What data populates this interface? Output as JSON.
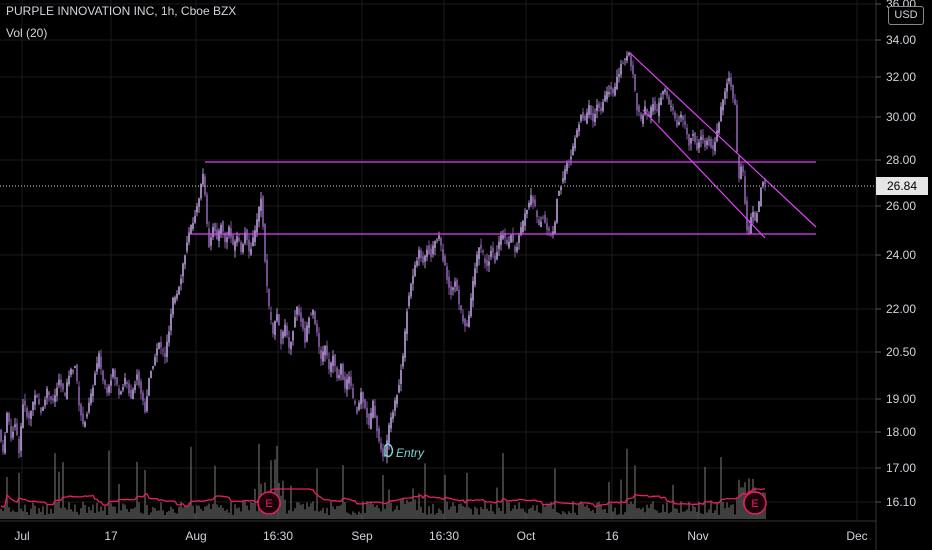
{
  "header": {
    "title": "PURPLE INNOVATION INC, 1h, Cboe BZX",
    "volume_label": "Vol (20)"
  },
  "currency_badge": "USD",
  "current_price_label": "26.84",
  "entry_label": "Entry",
  "earnings_label": "E",
  "colors": {
    "background": "#000000",
    "candle": "#c8a2f0",
    "candle_up": "#d9b8ff",
    "candle_down": "#a070c8",
    "drawing": "#e040fb",
    "volume_ma": "#e91e63",
    "volume_bar": "#5a5a5a",
    "entry_marker": "#7fd4d4",
    "grid": "#1a1a1a",
    "axis_text": "#d1d4dc"
  },
  "chart_data": {
    "type": "candlestick",
    "title": "PURPLE INNOVATION INC, 1h, Cboe BZX",
    "y_scale": "log",
    "ylim": [
      15.7,
      36.0
    ],
    "y_ticks": [
      "36.00",
      "34.00",
      "32.00",
      "30.00",
      "28.00",
      "26.00",
      "24.00",
      "22.00",
      "20.50",
      "19.00",
      "18.00",
      "17.00",
      "16.10"
    ],
    "x_ticks": [
      "Jul",
      "17",
      "Aug",
      "16:30",
      "Sep",
      "16:30",
      "Oct",
      "16",
      "Nov",
      "Dec"
    ],
    "current_price": 26.84,
    "volume_indicator": "Vol (20)",
    "price_path": [
      [
        0,
        18.1
      ],
      [
        4,
        17.4
      ],
      [
        8,
        18.6
      ],
      [
        12,
        17.9
      ],
      [
        16,
        18.3
      ],
      [
        20,
        17.5
      ],
      [
        24,
        18.9
      ],
      [
        30,
        18.4
      ],
      [
        36,
        19.2
      ],
      [
        42,
        18.6
      ],
      [
        48,
        19.3
      ],
      [
        54,
        18.9
      ],
      [
        60,
        19.6
      ],
      [
        66,
        19.1
      ],
      [
        70,
        19.8
      ],
      [
        76,
        20.1
      ],
      [
        80,
        18.9
      ],
      [
        84,
        18.2
      ],
      [
        88,
        18.6
      ],
      [
        92,
        19.1
      ],
      [
        96,
        19.8
      ],
      [
        100,
        20.4
      ],
      [
        104,
        19.6
      ],
      [
        108,
        19.3
      ],
      [
        114,
        19.9
      ],
      [
        120,
        19.2
      ],
      [
        126,
        19.6
      ],
      [
        132,
        19.1
      ],
      [
        138,
        19.8
      ],
      [
        142,
        19.2
      ],
      [
        146,
        18.7
      ],
      [
        150,
        19.6
      ],
      [
        155,
        20.3
      ],
      [
        160,
        20.8
      ],
      [
        166,
        20.4
      ],
      [
        170,
        21.2
      ],
      [
        174,
        22.3
      ],
      [
        178,
        22.6
      ],
      [
        182,
        23.2
      ],
      [
        186,
        24.1
      ],
      [
        190,
        24.8
      ],
      [
        194,
        25.4
      ],
      [
        198,
        25.9
      ],
      [
        202,
        26.9
      ],
      [
        205,
        27.6
      ],
      [
        207,
        25.5
      ],
      [
        210,
        24.4
      ],
      [
        214,
        25.2
      ],
      [
        218,
        24.6
      ],
      [
        222,
        25.3
      ],
      [
        226,
        24.5
      ],
      [
        230,
        25.1
      ],
      [
        234,
        24.3
      ],
      [
        238,
        24.8
      ],
      [
        242,
        24.2
      ],
      [
        246,
        24.9
      ],
      [
        250,
        24.1
      ],
      [
        254,
        24.6
      ],
      [
        258,
        25.4
      ],
      [
        262,
        26.4
      ],
      [
        264,
        25.2
      ],
      [
        267,
        23.1
      ],
      [
        270,
        22.0
      ],
      [
        274,
        21.2
      ],
      [
        278,
        21.8
      ],
      [
        282,
        20.9
      ],
      [
        286,
        21.4
      ],
      [
        290,
        20.6
      ],
      [
        294,
        21.3
      ],
      [
        298,
        22.1
      ],
      [
        302,
        21.6
      ],
      [
        306,
        20.9
      ],
      [
        310,
        21.8
      ],
      [
        314,
        22.0
      ],
      [
        318,
        21.1
      ],
      [
        322,
        20.2
      ],
      [
        326,
        20.8
      ],
      [
        330,
        19.9
      ],
      [
        334,
        20.4
      ],
      [
        338,
        19.6
      ],
      [
        342,
        20.1
      ],
      [
        346,
        19.3
      ],
      [
        350,
        19.8
      ],
      [
        354,
        19.0
      ],
      [
        358,
        18.6
      ],
      [
        362,
        19.2
      ],
      [
        366,
        18.8
      ],
      [
        370,
        18.2
      ],
      [
        374,
        18.9
      ],
      [
        378,
        18.1
      ],
      [
        382,
        17.5
      ],
      [
        385,
        17.2
      ],
      [
        388,
        17.8
      ],
      [
        392,
        18.5
      ],
      [
        396,
        18.9
      ],
      [
        400,
        19.5
      ],
      [
        404,
        20.4
      ],
      [
        408,
        22.0
      ],
      [
        412,
        22.9
      ],
      [
        416,
        23.6
      ],
      [
        420,
        24.1
      ],
      [
        424,
        23.8
      ],
      [
        428,
        24.3
      ],
      [
        432,
        24.0
      ],
      [
        436,
        24.6
      ],
      [
        440,
        24.8
      ],
      [
        444,
        23.9
      ],
      [
        448,
        23.1
      ],
      [
        452,
        22.6
      ],
      [
        456,
        23.0
      ],
      [
        460,
        22.2
      ],
      [
        464,
        21.6
      ],
      [
        468,
        21.3
      ],
      [
        472,
        22.4
      ],
      [
        476,
        23.5
      ],
      [
        480,
        24.4
      ],
      [
        484,
        24.0
      ],
      [
        488,
        23.5
      ],
      [
        492,
        24.2
      ],
      [
        496,
        23.8
      ],
      [
        500,
        24.5
      ],
      [
        504,
        24.9
      ],
      [
        508,
        24.4
      ],
      [
        512,
        24.8
      ],
      [
        516,
        24.1
      ],
      [
        520,
        24.7
      ],
      [
        524,
        25.3
      ],
      [
        528,
        25.9
      ],
      [
        532,
        26.4
      ],
      [
        536,
        25.9
      ],
      [
        540,
        25.2
      ],
      [
        544,
        25.6
      ],
      [
        548,
        25.0
      ],
      [
        552,
        24.8
      ],
      [
        555,
        24.9
      ],
      [
        558,
        26.3
      ],
      [
        562,
        26.9
      ],
      [
        566,
        27.6
      ],
      [
        570,
        27.9
      ],
      [
        574,
        28.6
      ],
      [
        578,
        29.3
      ],
      [
        582,
        30.2
      ],
      [
        586,
        29.8
      ],
      [
        590,
        30.5
      ],
      [
        594,
        29.9
      ],
      [
        598,
        30.6
      ],
      [
        602,
        30.3
      ],
      [
        606,
        31.0
      ],
      [
        610,
        31.4
      ],
      [
        614,
        31.2
      ],
      [
        618,
        31.9
      ],
      [
        622,
        32.6
      ],
      [
        626,
        33.0
      ],
      [
        630,
        33.3
      ],
      [
        634,
        32.1
      ],
      [
        638,
        30.5
      ],
      [
        642,
        29.8
      ],
      [
        646,
        30.4
      ],
      [
        650,
        30.0
      ],
      [
        654,
        30.7
      ],
      [
        658,
        30.2
      ],
      [
        662,
        31.0
      ],
      [
        666,
        31.4
      ],
      [
        670,
        30.6
      ],
      [
        674,
        30.3
      ],
      [
        678,
        29.6
      ],
      [
        682,
        30.1
      ],
      [
        686,
        29.5
      ],
      [
        690,
        28.8
      ],
      [
        694,
        29.2
      ],
      [
        698,
        28.6
      ],
      [
        702,
        29.1
      ],
      [
        706,
        28.7
      ],
      [
        710,
        28.9
      ],
      [
        714,
        28.5
      ],
      [
        718,
        29.3
      ],
      [
        722,
        30.4
      ],
      [
        726,
        31.3
      ],
      [
        730,
        32.1
      ],
      [
        733,
        31.2
      ],
      [
        736,
        30.6
      ],
      [
        738,
        28.3
      ],
      [
        740,
        27.2
      ],
      [
        743,
        27.9
      ],
      [
        746,
        26.2
      ],
      [
        748,
        25.1
      ],
      [
        750,
        24.9
      ],
      [
        753,
        25.9
      ],
      [
        756,
        25.4
      ],
      [
        760,
        26.1
      ],
      [
        763,
        27.1
      ],
      [
        766,
        26.8
      ]
    ]
  }
}
